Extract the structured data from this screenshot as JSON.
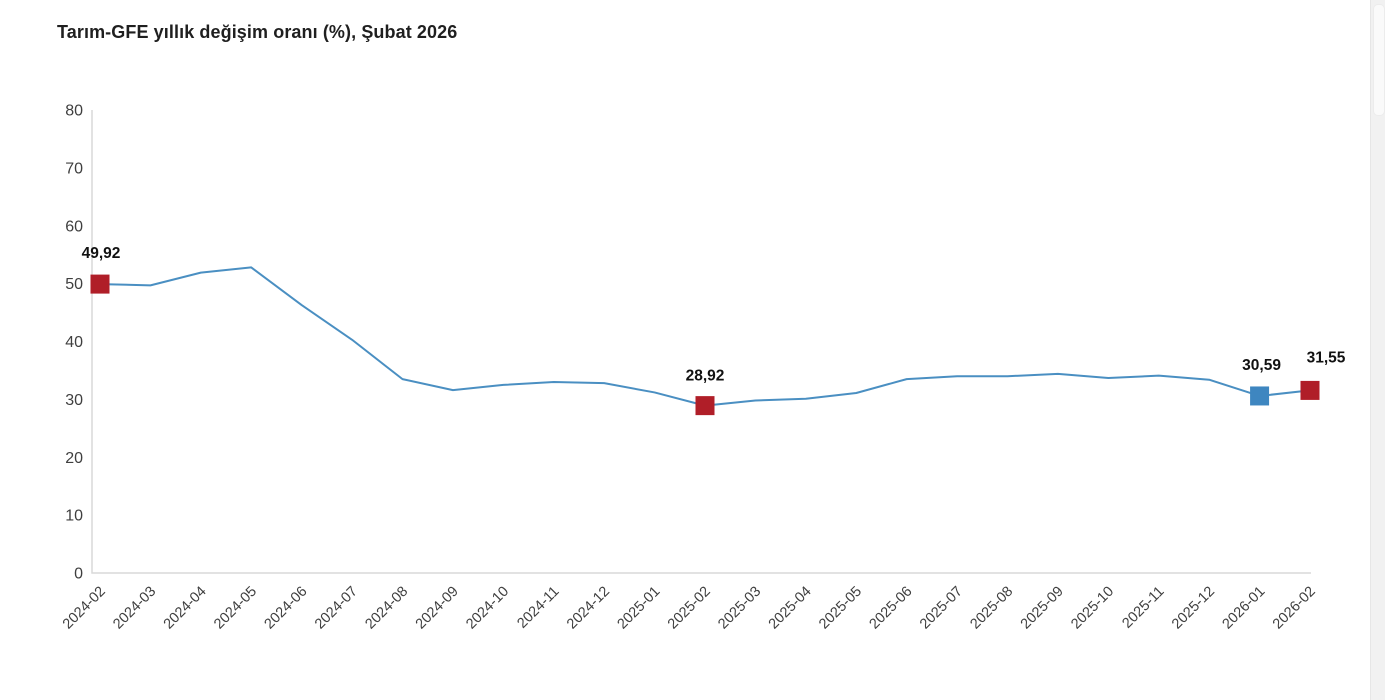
{
  "title": "Tarım-GFE yıllık değişim oranı (%), Şubat 2026",
  "colors": {
    "line": "#4a8fc2",
    "marker_red": "#b01e28",
    "marker_blue": "#3e86c0",
    "axis": "#d9d9d9",
    "tick_text": "#3f3f3f",
    "annotation_text": "#111111",
    "title_text": "#1f1f1f",
    "scrollbar_track": "#f1f1f1"
  },
  "chart_data": {
    "type": "line",
    "title": "Tarım-GFE yıllık değişim oranı (%), Şubat 2026",
    "xlabel": "",
    "ylabel": "",
    "ylim": [
      0,
      80
    ],
    "yticks": [
      0,
      10,
      20,
      30,
      40,
      50,
      60,
      70,
      80
    ],
    "grid": false,
    "legend_position": "none",
    "categories": [
      "2024-02",
      "2024-03",
      "2024-04",
      "2024-05",
      "2024-06",
      "2024-07",
      "2024-08",
      "2024-09",
      "2024-10",
      "2024-11",
      "2024-12",
      "2025-01",
      "2025-02",
      "2025-03",
      "2025-04",
      "2025-05",
      "2025-06",
      "2025-07",
      "2025-08",
      "2025-09",
      "2025-10",
      "2025-11",
      "2025-12",
      "2026-01",
      "2026-02"
    ],
    "values": [
      49.92,
      49.7,
      51.9,
      52.8,
      46.3,
      40.3,
      33.5,
      31.6,
      32.5,
      33.0,
      32.8,
      31.2,
      28.92,
      29.8,
      30.1,
      31.1,
      33.5,
      34.0,
      34.0,
      34.4,
      33.7,
      34.1,
      33.4,
      30.59,
      31.55
    ],
    "annotated_points": [
      {
        "category": "2024-02",
        "value": 49.92,
        "label": "49,92",
        "marker_color": "#b01e28"
      },
      {
        "category": "2025-02",
        "value": 28.92,
        "label": "28,92",
        "marker_color": "#b01e28"
      },
      {
        "category": "2026-01",
        "value": 30.59,
        "label": "30,59",
        "marker_color": "#3e86c0"
      },
      {
        "category": "2026-02",
        "value": 31.55,
        "label": "31,55",
        "marker_color": "#b01e28"
      }
    ]
  }
}
